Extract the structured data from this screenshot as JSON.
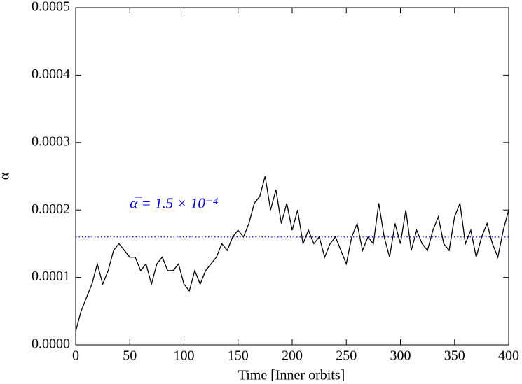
{
  "chart_data": {
    "type": "line",
    "xlabel": "Time [Inner orbits]",
    "ylabel": "α",
    "x": [
      0,
      5,
      10,
      15,
      20,
      25,
      30,
      35,
      40,
      45,
      50,
      55,
      60,
      65,
      70,
      75,
      80,
      85,
      90,
      95,
      100,
      105,
      110,
      115,
      120,
      125,
      130,
      135,
      140,
      145,
      150,
      155,
      160,
      165,
      170,
      175,
      180,
      185,
      190,
      195,
      200,
      205,
      210,
      215,
      220,
      225,
      230,
      235,
      240,
      245,
      250,
      255,
      260,
      265,
      270,
      275,
      280,
      285,
      290,
      295,
      300,
      305,
      310,
      315,
      320,
      325,
      330,
      335,
      340,
      345,
      350,
      355,
      360,
      365,
      370,
      375,
      380,
      385,
      390,
      395,
      400
    ],
    "series": [
      {
        "color": "#000000",
        "values": [
          2e-05,
          5e-05,
          7e-05,
          9e-05,
          0.00012,
          9e-05,
          0.00011,
          0.00014,
          0.00015,
          0.00014,
          0.00013,
          0.00013,
          0.00011,
          0.00012,
          9e-05,
          0.00012,
          0.00013,
          0.00011,
          0.00011,
          0.00012,
          9e-05,
          8e-05,
          0.00011,
          9e-05,
          0.00011,
          0.00012,
          0.00013,
          0.00015,
          0.00014,
          0.00016,
          0.00017,
          0.00016,
          0.00018,
          0.00021,
          0.00022,
          0.00025,
          0.0002,
          0.00023,
          0.00018,
          0.00021,
          0.00017,
          0.0002,
          0.00015,
          0.00017,
          0.00015,
          0.00016,
          0.00013,
          0.00015,
          0.00016,
          0.00014,
          0.00012,
          0.00016,
          0.00018,
          0.00014,
          0.00016,
          0.00015,
          0.00021,
          0.00016,
          0.00013,
          0.00018,
          0.00015,
          0.0002,
          0.00014,
          0.00017,
          0.00015,
          0.00014,
          0.00017,
          0.00019,
          0.00015,
          0.00014,
          0.00019,
          0.00021,
          0.00015,
          0.00017,
          0.00013,
          0.00016,
          0.00018,
          0.00015,
          0.00013,
          0.00017,
          0.0002
        ]
      }
    ],
    "reference_line": {
      "value": 0.00016,
      "color": "#0000ff"
    },
    "annotation": "α̅ = 1.5 × 10⁻⁴",
    "xlim": [
      0,
      400
    ],
    "xticks": [
      0,
      50,
      100,
      150,
      200,
      250,
      300,
      350,
      400
    ],
    "ylim": [
      0,
      0.0005
    ],
    "yticks": [
      {
        "value": 0,
        "label": "0.0000"
      },
      {
        "value": 0.0001,
        "label": "0.0001"
      },
      {
        "value": 0.0002,
        "label": "0.0002"
      },
      {
        "value": 0.0003,
        "label": "0.0003"
      },
      {
        "value": 0.0004,
        "label": "0.0004"
      },
      {
        "value": 0.0005,
        "label": "0.0005"
      }
    ],
    "grid": false
  }
}
